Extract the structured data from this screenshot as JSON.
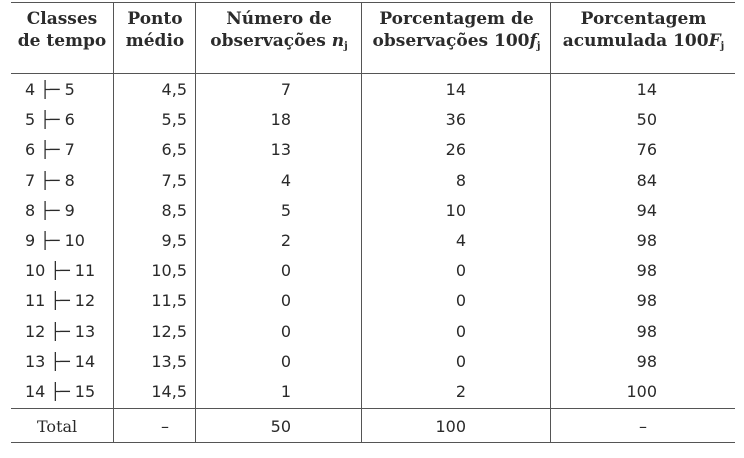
{
  "headers": {
    "classes": [
      "Classes",
      "de tempo"
    ],
    "ponto": [
      "Ponto",
      "médio"
    ],
    "numero": [
      "Número de",
      "observações"
    ],
    "numero_var": "n",
    "numero_sub": "j",
    "porcentagem": [
      "Porcentagem de",
      "observações 100"
    ],
    "porcentagem_var": "f",
    "porcentagem_sub": "j",
    "acumulada": [
      "Porcentagem",
      "acumulada 100"
    ],
    "acumulada_var": "F",
    "acumulada_sub": "j"
  },
  "rows": [
    {
      "classe": "4 ├─ 5",
      "ponto": "4,5",
      "n": "7",
      "pct": "14",
      "acc": "14"
    },
    {
      "classe": "5 ├─ 6",
      "ponto": "5,5",
      "n": "18",
      "pct": "36",
      "acc": "50"
    },
    {
      "classe": "6 ├─ 7",
      "ponto": "6,5",
      "n": "13",
      "pct": "26",
      "acc": "76"
    },
    {
      "classe": "7 ├─ 8",
      "ponto": "7,5",
      "n": "4",
      "pct": "8",
      "acc": "84"
    },
    {
      "classe": "8 ├─ 9",
      "ponto": "8,5",
      "n": "5",
      "pct": "10",
      "acc": "94"
    },
    {
      "classe": "9 ├─ 10",
      "ponto": "9,5",
      "n": "2",
      "pct": "4",
      "acc": "98"
    },
    {
      "classe": "10 ├─ 11",
      "ponto": "10,5",
      "n": "0",
      "pct": "0",
      "acc": "98"
    },
    {
      "classe": "11 ├─ 12",
      "ponto": "11,5",
      "n": "0",
      "pct": "0",
      "acc": "98"
    },
    {
      "classe": "12 ├─ 13",
      "ponto": "12,5",
      "n": "0",
      "pct": "0",
      "acc": "98"
    },
    {
      "classe": "13 ├─ 14",
      "ponto": "13,5",
      "n": "0",
      "pct": "0",
      "acc": "98"
    },
    {
      "classe": "14 ├─ 15",
      "ponto": "14,5",
      "n": "1",
      "pct": "2",
      "acc": "100"
    }
  ],
  "total": {
    "label": "Total",
    "ponto": "–",
    "n": "50",
    "pct": "100",
    "acc": "–"
  }
}
